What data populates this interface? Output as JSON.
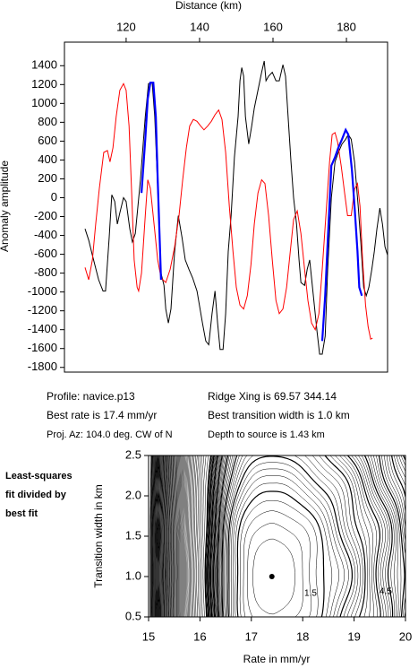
{
  "chart_data": [
    {
      "type": "line",
      "xlabel": "Distance (km)",
      "ylabel": "Anomaly amplitude",
      "xlim": [
        103.2,
        191.2
      ],
      "xticks": [
        120,
        140,
        160,
        180
      ],
      "ylim": [
        -1850,
        1650
      ],
      "yticks": [
        -1800,
        -1600,
        -1400,
        -1200,
        -1000,
        -800,
        -600,
        -400,
        -200,
        0,
        200,
        400,
        600,
        800,
        1000,
        1200,
        1400
      ],
      "series": [
        {
          "color": "#000000",
          "x": [
            108.8,
            109.8,
            110.8,
            112.5,
            113.7,
            114.4,
            115.4,
            116.1,
            116.9,
            117.6,
            118.3,
            119.3,
            120.0,
            121.0,
            121.7,
            122.5,
            123.9,
            125.2,
            126.1,
            127.1,
            127.8,
            128.6,
            129.5,
            130.3,
            130.8,
            131.5,
            132.2,
            133.2,
            134.2,
            135.2,
            136.1,
            137.1,
            138.1,
            139.3,
            140.8,
            141.7,
            142.5,
            143.4,
            144.2,
            144.9,
            145.6,
            146.4,
            147.1,
            147.8,
            148.6,
            149.5,
            150.5,
            151.0,
            151.5,
            152.0,
            152.5,
            153.4,
            154.2,
            154.9,
            155.9,
            156.9,
            157.6,
            158.1,
            158.8,
            159.8,
            160.8,
            161.7,
            162.7,
            163.4,
            164.2,
            164.9,
            165.6,
            166.4,
            167.1,
            167.6,
            168.6,
            169.3,
            170.0,
            171.0,
            172.0,
            172.7,
            173.4,
            174.2,
            174.9,
            175.9,
            176.9,
            177.8,
            178.8,
            179.8,
            180.5,
            181.3,
            182.2,
            183.2,
            183.9,
            184.7,
            185.4,
            186.1,
            186.9,
            187.6,
            188.3,
            189.1,
            189.8,
            190.5,
            191.2
          ],
          "values": [
            -330,
            -450,
            -610,
            -870,
            -990,
            -990,
            -420,
            30,
            -40,
            -280,
            -160,
            0,
            -40,
            -330,
            -470,
            -380,
            190,
            860,
            1210,
            1220,
            860,
            100,
            -800,
            -930,
            -1180,
            -1330,
            -1180,
            -570,
            -190,
            -420,
            -660,
            -760,
            -850,
            -990,
            -1330,
            -1520,
            -1560,
            -1230,
            -990,
            -1330,
            -1610,
            -1610,
            -1230,
            -570,
            -190,
            430,
            860,
            1240,
            1380,
            1290,
            860,
            570,
            760,
            950,
            1140,
            1330,
            1450,
            1240,
            1290,
            1330,
            1240,
            1240,
            1410,
            1290,
            810,
            380,
            0,
            -280,
            -660,
            -900,
            -930,
            -760,
            -660,
            -1040,
            -1420,
            -1660,
            -1660,
            -1470,
            -760,
            0,
            380,
            480,
            570,
            620,
            670,
            620,
            380,
            -90,
            -470,
            -950,
            -1040,
            -950,
            -760,
            -570,
            -330,
            -110,
            -280,
            -520,
            -610
          ]
        },
        {
          "color": "#ff0000",
          "x": [
            108.8,
            109.8,
            110.8,
            111.7,
            112.7,
            113.9,
            114.9,
            115.6,
            116.4,
            117.3,
            118.3,
            119.3,
            120.0,
            120.8,
            121.5,
            122.2,
            123.0,
            123.4,
            124.2,
            125.2,
            125.9,
            126.6,
            127.6,
            128.6,
            129.5,
            130.8,
            132.0,
            133.2,
            134.4,
            135.4,
            136.4,
            137.3,
            138.3,
            139.3,
            140.3,
            141.2,
            142.2,
            143.2,
            144.2,
            145.2,
            146.1,
            147.1,
            148.1,
            149.1,
            150.0,
            151.0,
            152.0,
            153.0,
            154.0,
            154.9,
            155.9,
            156.9,
            157.8,
            158.8,
            159.8,
            160.8,
            161.7,
            162.7,
            163.7,
            164.7,
            165.6,
            166.6,
            167.6,
            168.6,
            169.5,
            170.5,
            171.5,
            172.5,
            173.4,
            174.4,
            175.4,
            176.1,
            176.9,
            177.6,
            178.6,
            179.5,
            180.3,
            181.3,
            182.2,
            183.0,
            183.7,
            184.4,
            185.2,
            185.9,
            186.6,
            187.1
          ],
          "values": [
            -740,
            -870,
            -660,
            -280,
            100,
            480,
            500,
            380,
            530,
            860,
            1140,
            1210,
            1140,
            760,
            50,
            -660,
            -950,
            -990,
            -800,
            -190,
            190,
            100,
            -280,
            -660,
            -850,
            -900,
            -760,
            -520,
            -190,
            190,
            530,
            760,
            830,
            810,
            760,
            720,
            760,
            810,
            880,
            930,
            830,
            480,
            -90,
            -570,
            -950,
            -1140,
            -1180,
            -1040,
            -710,
            -280,
            50,
            190,
            150,
            -190,
            -660,
            -1090,
            -1230,
            -1180,
            -950,
            -570,
            -230,
            -140,
            -380,
            -760,
            -1090,
            -1330,
            -1400,
            -1230,
            -760,
            -190,
            380,
            670,
            690,
            590,
            330,
            50,
            -190,
            -190,
            90,
            150,
            -90,
            -660,
            -1140,
            -1370,
            -1500,
            -1490
          ]
        },
        {
          "color": "#0000ff",
          "x": [
            124.2,
            125.2,
            125.9,
            126.6,
            127.4,
            128.1,
            128.6,
            129.1,
            129.5,
            null,
            173.4,
            174.2,
            174.9,
            175.9,
            176.9,
            177.8,
            178.8,
            179.8,
            180.5,
            181.5,
            182.2,
            183.0,
            183.5,
            184.2
          ],
          "values": [
            50,
            620,
            1050,
            1220,
            1220,
            860,
            190,
            -380,
            -870,
            null,
            -1520,
            -1040,
            -470,
            340,
            430,
            530,
            620,
            720,
            670,
            290,
            -90,
            -570,
            -950,
            -1040
          ]
        }
      ],
      "annotations": [
        "Profile: navice.p13",
        "Ridge Xing is 69.57 344.14",
        "Best rate is 17.4 mm/yr",
        "Best transition width is 1.0 km",
        "Proj. Az: 104.0 deg. CW of N",
        "Depth to source is   1.43 km"
      ]
    },
    {
      "type": "contour",
      "title": [
        "Least-squares",
        "fit divided by",
        "best fit"
      ],
      "xlabel": "Rate in mm/yr",
      "ylabel": "Transition width in km",
      "xlim": [
        15,
        20
      ],
      "xticks": [
        15,
        16,
        17,
        18,
        19,
        20
      ],
      "ylim": [
        0.5,
        2.5
      ],
      "yticks": [
        0.5,
        {
          "value": 1.0,
          "label": "1.0"
        },
        1.5,
        {
          "value": 2.0,
          "label": "2.0"
        },
        2.5
      ],
      "best_fit": {
        "rate": 17.4,
        "width": 1.0
      },
      "contour_labels": [
        1.5,
        4.5
      ]
    }
  ]
}
